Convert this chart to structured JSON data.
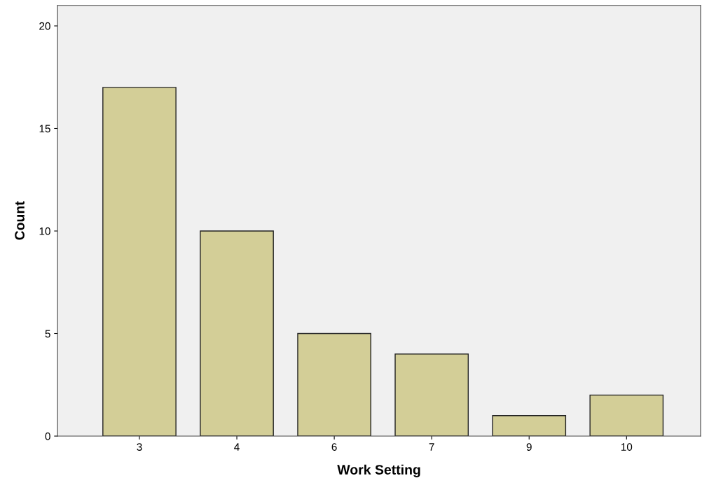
{
  "chart_data": {
    "type": "bar",
    "xlabel": "Work Setting",
    "ylabel": "Count",
    "categories": [
      "3",
      "4",
      "6",
      "7",
      "9",
      "10"
    ],
    "values": [
      17,
      10,
      5,
      4,
      1,
      2
    ],
    "color": "#d3ce97",
    "ylim": [
      0,
      21
    ],
    "yticks": [
      0,
      5,
      10,
      15,
      20
    ],
    "grid": false,
    "legend": false
  }
}
